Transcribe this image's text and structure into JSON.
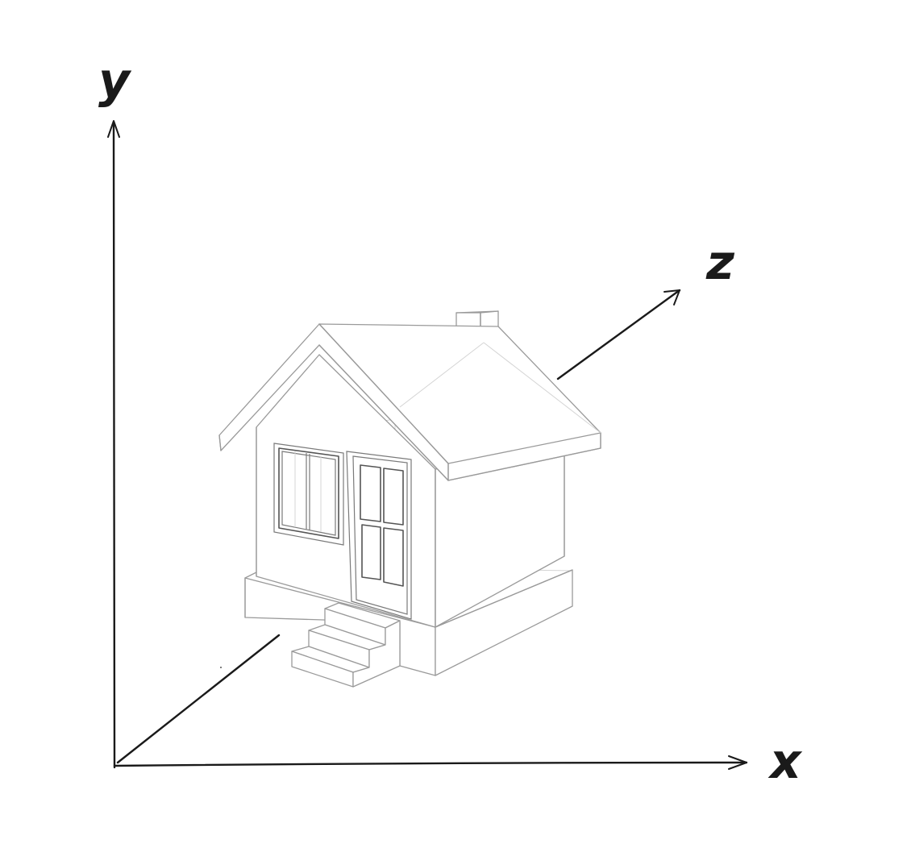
{
  "axes": {
    "x_label": "x",
    "y_label": "y",
    "z_label": "z"
  },
  "colors": {
    "axis": "#1a1a1a",
    "house_outline": "#9a9a9a",
    "background": "#ffffff"
  }
}
